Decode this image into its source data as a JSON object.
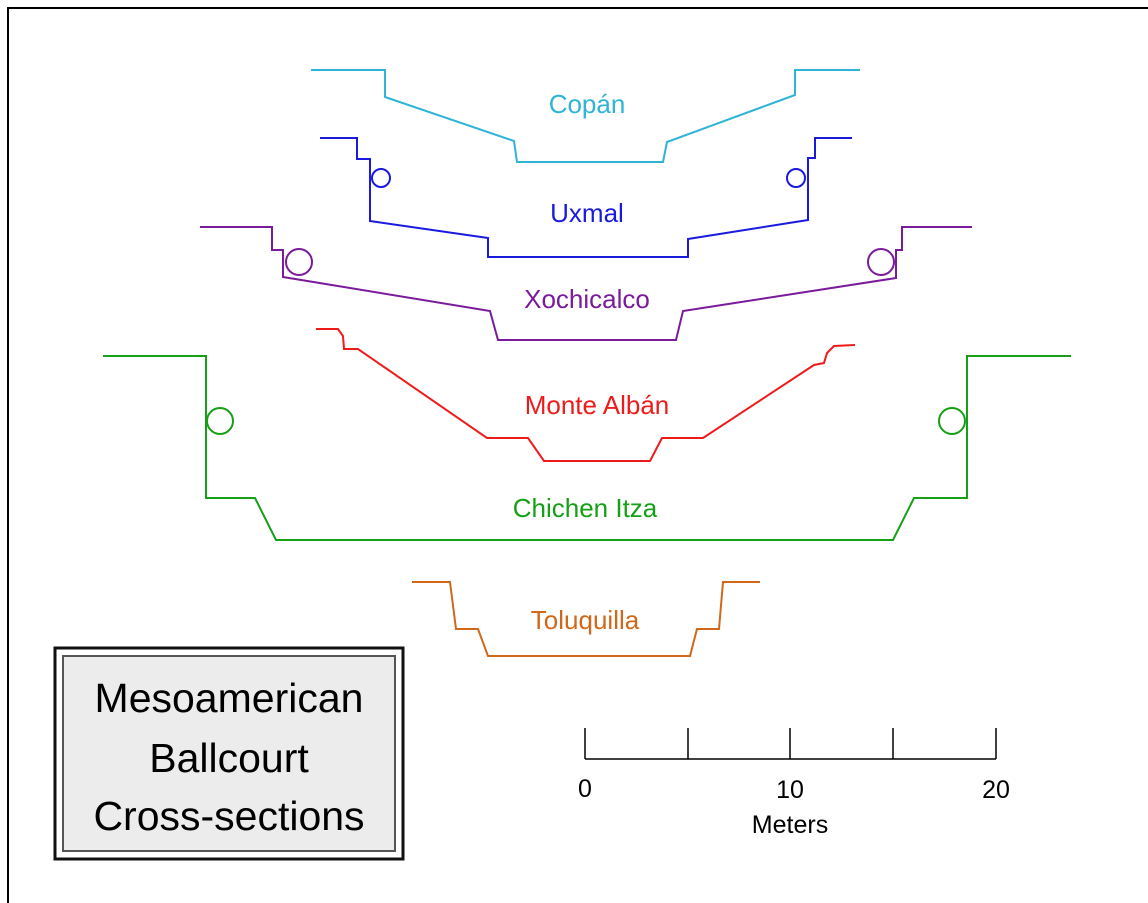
{
  "title": {
    "lines": [
      "Mesoamerican",
      "Ballcourt",
      "Cross-sections"
    ]
  },
  "courts": [
    {
      "name": "Copán",
      "color": "#2fb3d6"
    },
    {
      "name": "Uxmal",
      "color": "#1a1adf"
    },
    {
      "name": "Xochicalco",
      "color": "#7a1b9b"
    },
    {
      "name": "Monte Albán",
      "color": "#ee1b1b"
    },
    {
      "name": "Chichen Itza",
      "color": "#16a016"
    },
    {
      "name": "Toluquilla",
      "color": "#d0681a"
    }
  ],
  "scale": {
    "ticks": [
      "0",
      "10",
      "20"
    ],
    "unit": "Meters"
  },
  "colors": {
    "frame": "#000000",
    "title_box_fill": "#ececec",
    "title_box_border": "#333333",
    "scale": "#000000"
  }
}
